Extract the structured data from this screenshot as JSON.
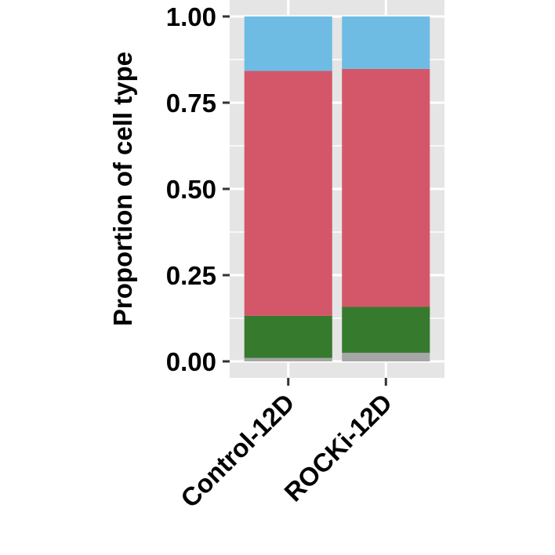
{
  "chart_data": {
    "type": "bar",
    "stacked": true,
    "title": "",
    "xlabel": "",
    "ylabel": "Proportion of cell type",
    "ylim": [
      0,
      1
    ],
    "yticks": [
      "0.00",
      "0.25",
      "0.50",
      "0.75",
      "1.00"
    ],
    "ytick_values": [
      0,
      0.25,
      0.5,
      0.75,
      1
    ],
    "grid": true,
    "legend": "none",
    "categories": [
      "Control-12D",
      "ROCKi-12D"
    ],
    "series": [
      {
        "color": "#a6a6a6",
        "values": [
          0.01,
          0.025
        ]
      },
      {
        "color": "#367a2e",
        "values": [
          0.122,
          0.133
        ]
      },
      {
        "color": "#d45769",
        "values": [
          0.71,
          0.69
        ]
      },
      {
        "color": "#6ebce4",
        "values": [
          0.158,
          0.152
        ]
      }
    ],
    "panel_background": "#e5e5e5",
    "grid_color": "#ffffff"
  }
}
